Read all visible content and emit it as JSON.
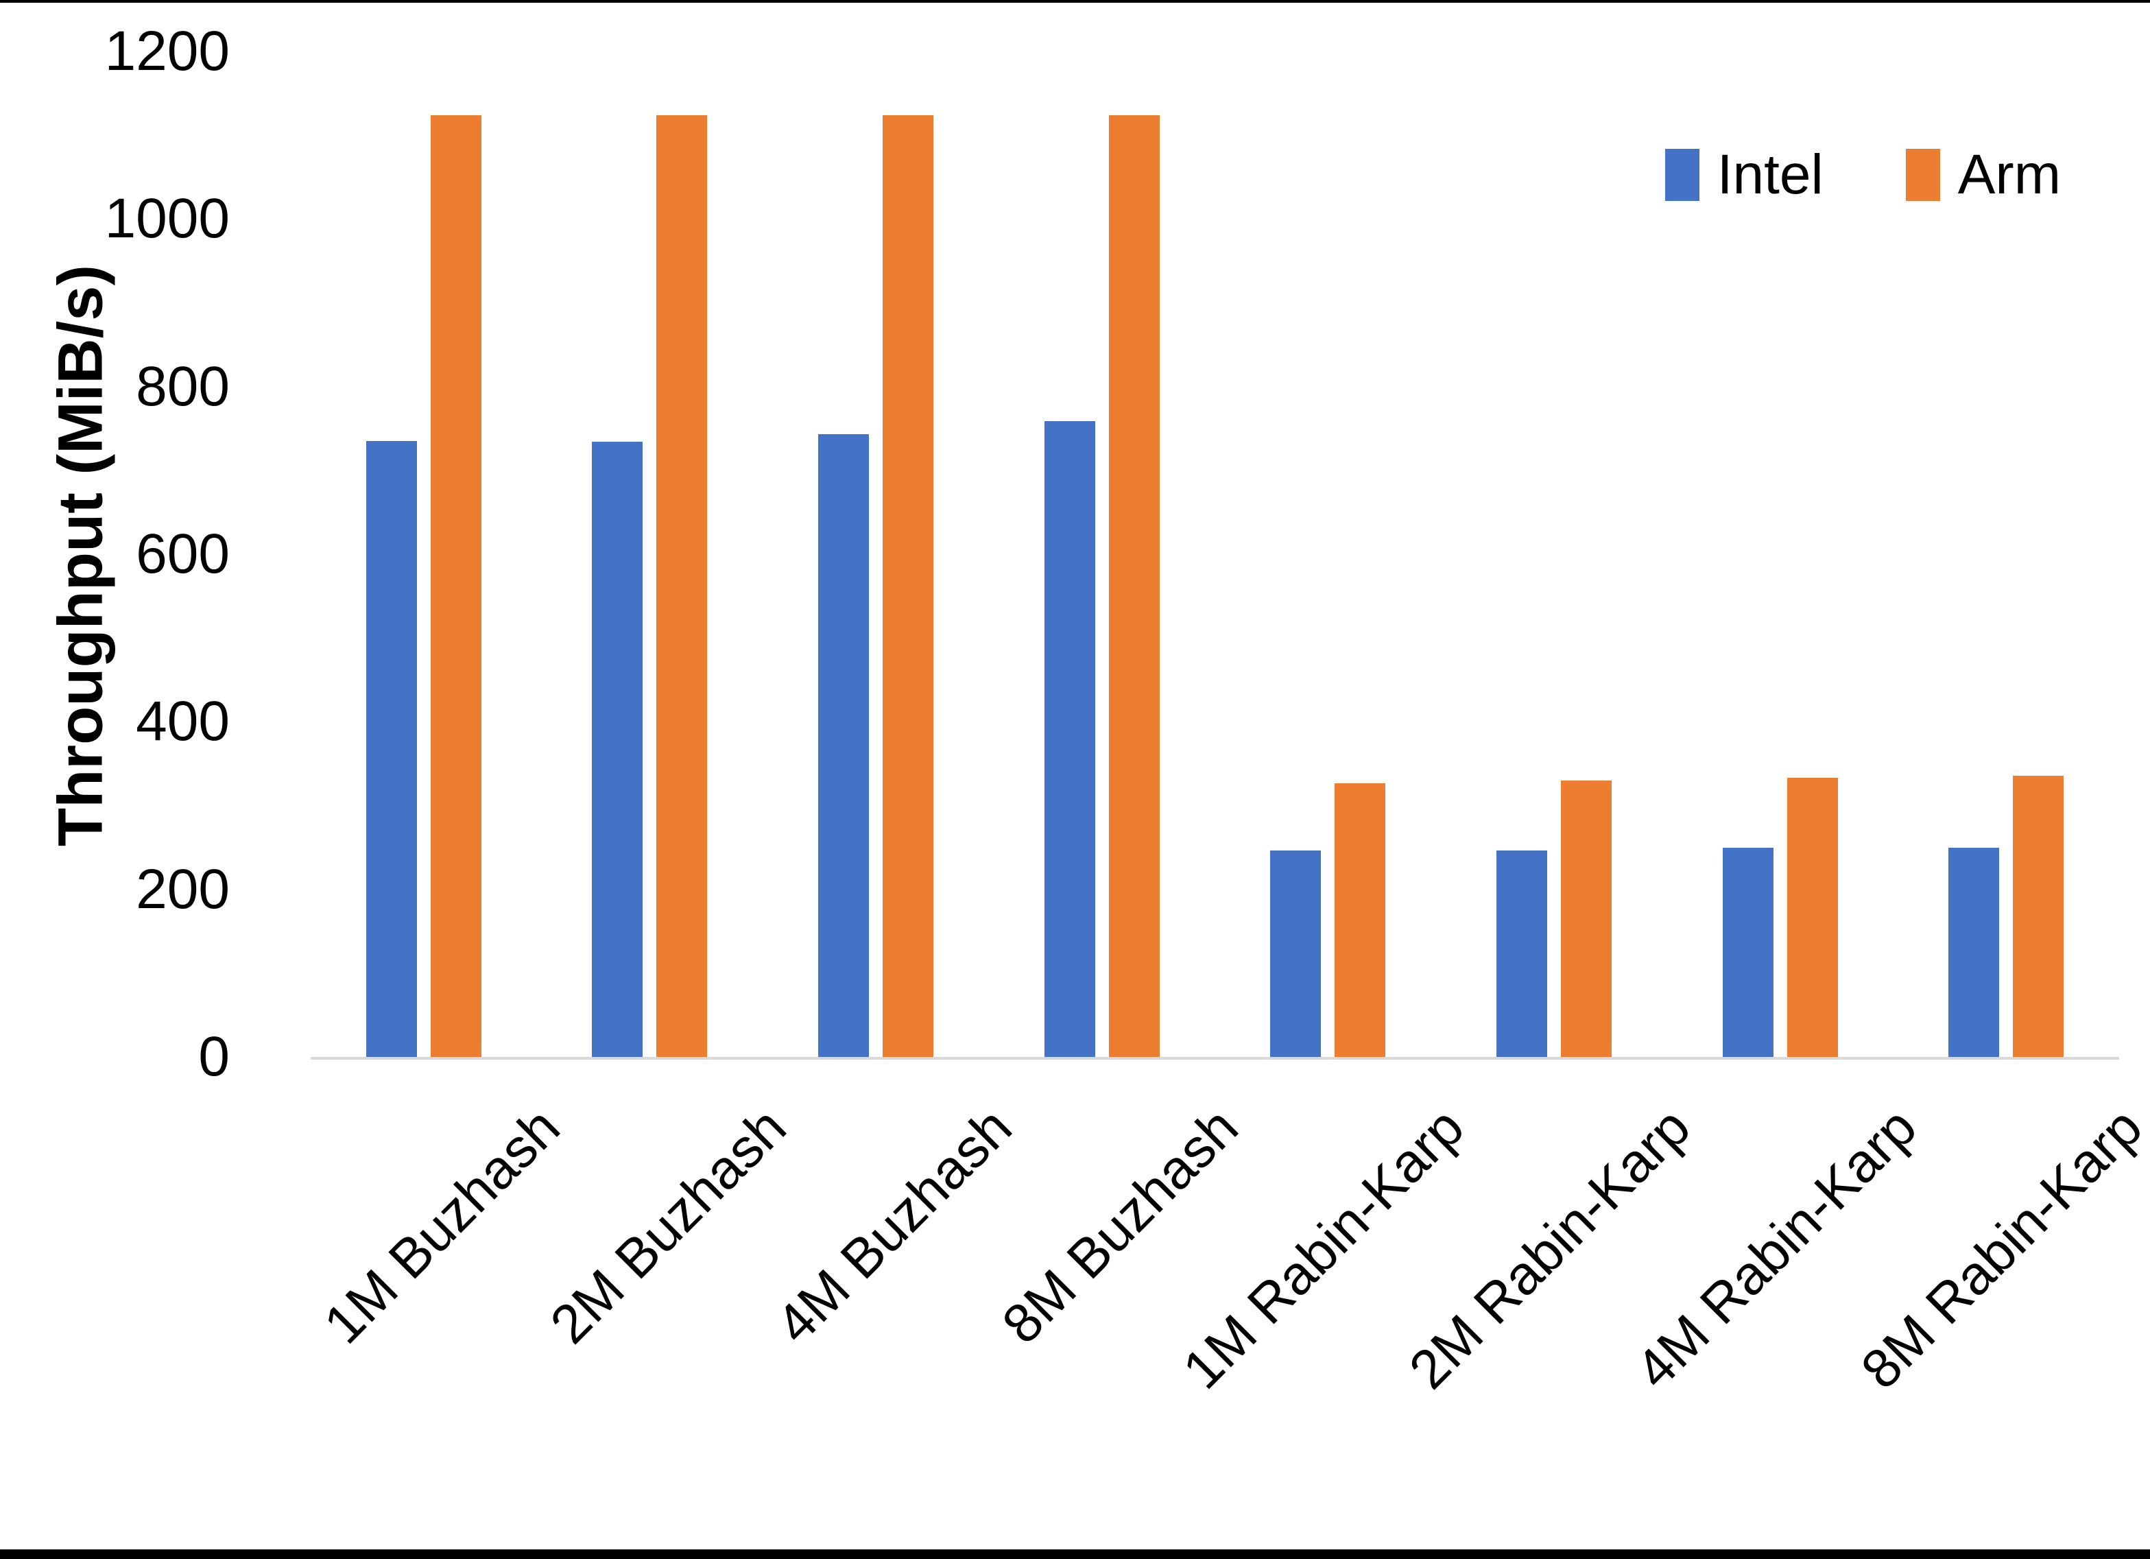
{
  "chart_data": {
    "type": "bar",
    "title": "",
    "categories": [
      "1M Buzhash",
      "2M Buzhash",
      "4M Buzhash",
      "8M Buzhash",
      "1M Rabin-Karp",
      "2M Rabin-Karp",
      "4M Rabin-Karp",
      "8M Rabin-Karp"
    ],
    "series": [
      {
        "name": "Intel",
        "color": "#4472C4",
        "values": [
          735,
          734,
          743,
          759,
          246,
          246,
          250,
          250
        ]
      },
      {
        "name": "Arm",
        "color": "#ED7D31",
        "values": [
          1124,
          1124,
          1124,
          1124,
          327,
          330,
          333,
          336
        ]
      }
    ],
    "xlabel": "",
    "ylabel": "Throughput (MiB/s)",
    "ylim": [
      0,
      1200
    ],
    "yticks": [
      0,
      200,
      400,
      600,
      800,
      1000,
      1200
    ],
    "grid": false,
    "legend_position": "top-right"
  },
  "colors": {
    "axis_line": "#D9D9D9",
    "text": "#000000",
    "background": "#FFFFFF",
    "border": "#000000"
  }
}
